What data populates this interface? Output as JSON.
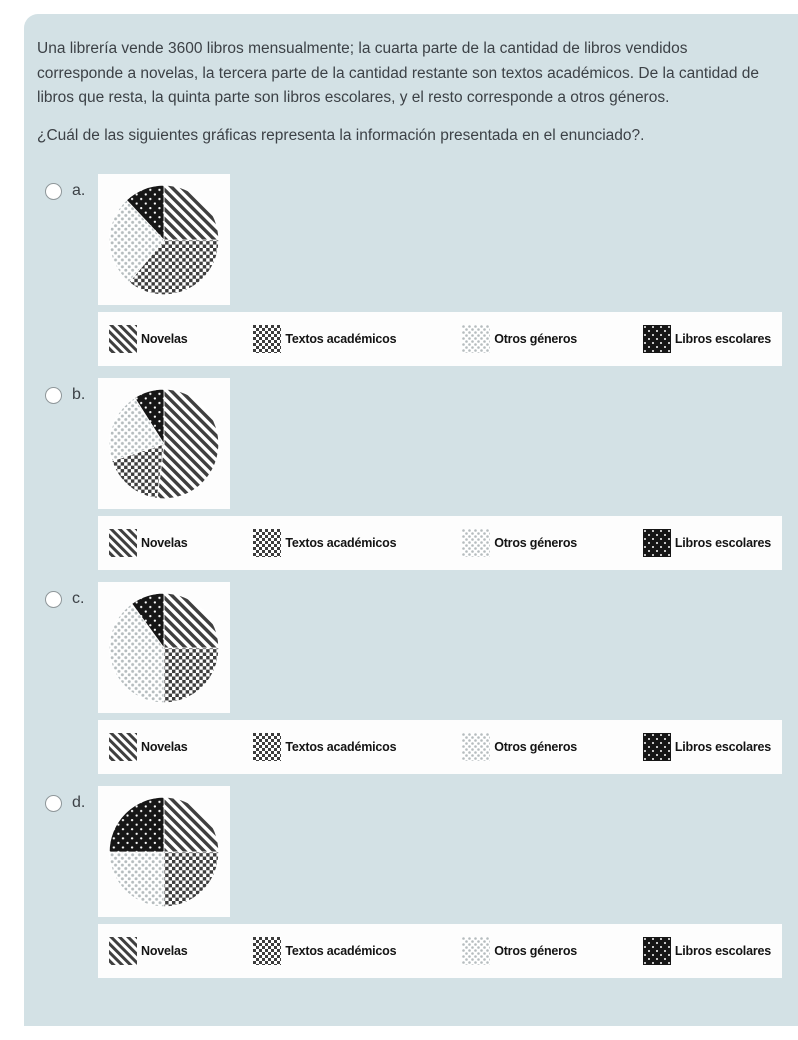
{
  "question": {
    "body": "Una librería vende 3600 libros mensualmente; la cuarta parte de la cantidad de libros vendidos corresponde a novelas, la tercera parte de la cantidad restante son textos académicos. De la cantidad de libros que resta, la quinta parte son libros escolares, y el resto corresponde a otros géneros.",
    "prompt": "¿Cuál de las siguientes gráficas representa la información presentada en el enunciado?."
  },
  "legend": {
    "items": [
      {
        "label": "Novelas",
        "key": "novelas",
        "pattern": "diagonal-stripes"
      },
      {
        "label": "Textos académicos",
        "key": "textos-academicos",
        "pattern": "dark-checkerboard"
      },
      {
        "label": "Otros géneros",
        "key": "otros-generos",
        "pattern": "light-dot-grid"
      },
      {
        "label": "Libros escolares",
        "key": "libros-escolares",
        "pattern": "black-white-dots"
      }
    ]
  },
  "options": [
    {
      "label": "a.",
      "selected": false,
      "slices": [
        {
          "key": "novelas",
          "pattern": "diagonal",
          "percent": 25
        },
        {
          "key": "textos-academicos",
          "pattern": "checker",
          "percent": 36
        },
        {
          "key": "otros-generos",
          "pattern": "lightdots",
          "percent": 27
        },
        {
          "key": "libros-escolares",
          "pattern": "blackdots",
          "percent": 12
        }
      ]
    },
    {
      "label": "b.",
      "selected": false,
      "slices": [
        {
          "key": "novelas",
          "pattern": "diagonal",
          "percent": 52
        },
        {
          "key": "textos-academicos",
          "pattern": "checker",
          "percent": 18
        },
        {
          "key": "otros-generos",
          "pattern": "lightdots",
          "percent": 21
        },
        {
          "key": "libros-escolares",
          "pattern": "blackdots",
          "percent": 9
        }
      ]
    },
    {
      "label": "c.",
      "selected": false,
      "slices": [
        {
          "key": "novelas",
          "pattern": "diagonal",
          "percent": 25
        },
        {
          "key": "textos-academicos",
          "pattern": "checker",
          "percent": 25
        },
        {
          "key": "otros-generos",
          "pattern": "lightdots",
          "percent": 40
        },
        {
          "key": "libros-escolares",
          "pattern": "blackdots",
          "percent": 10
        }
      ]
    },
    {
      "label": "d.",
      "selected": false,
      "slices": [
        {
          "key": "novelas",
          "pattern": "diagonal",
          "percent": 25
        },
        {
          "key": "textos-academicos",
          "pattern": "checker",
          "percent": 25
        },
        {
          "key": "otros-generos",
          "pattern": "lightdots",
          "percent": 25
        },
        {
          "key": "libros-escolares",
          "pattern": "blackdots",
          "percent": 25
        }
      ]
    }
  ],
  "chart_data": [
    {
      "type": "pie",
      "option": "a",
      "categories": [
        "Novelas",
        "Textos académicos",
        "Otros géneros",
        "Libros escolares"
      ],
      "values": [
        25,
        36,
        27,
        12
      ],
      "unit": "percent",
      "start_angle": "12 o'clock",
      "direction": "clockwise",
      "legend_position": "below"
    },
    {
      "type": "pie",
      "option": "b",
      "categories": [
        "Novelas",
        "Textos académicos",
        "Otros géneros",
        "Libros escolares"
      ],
      "values": [
        52,
        18,
        21,
        9
      ],
      "unit": "percent",
      "start_angle": "12 o'clock",
      "direction": "clockwise",
      "legend_position": "below"
    },
    {
      "type": "pie",
      "option": "c",
      "categories": [
        "Novelas",
        "Textos académicos",
        "Otros géneros",
        "Libros escolares"
      ],
      "values": [
        25,
        25,
        40,
        10
      ],
      "unit": "percent",
      "start_angle": "12 o'clock",
      "direction": "clockwise",
      "legend_position": "below"
    },
    {
      "type": "pie",
      "option": "d",
      "categories": [
        "Novelas",
        "Textos académicos",
        "Otros géneros",
        "Libros escolares"
      ],
      "values": [
        25,
        25,
        25,
        25
      ],
      "unit": "percent",
      "start_angle": "12 o'clock",
      "direction": "clockwise",
      "legend_position": "below"
    }
  ],
  "colors": {
    "card_bg": "#d3e1e5",
    "page_bg": "#ffffff",
    "panel_bg": "#fdfdfd",
    "text": "#3c4146",
    "pattern_dark": "#3f3f3f",
    "pattern_light_dot": "#b5bcbe",
    "pattern_black": "#161616"
  }
}
